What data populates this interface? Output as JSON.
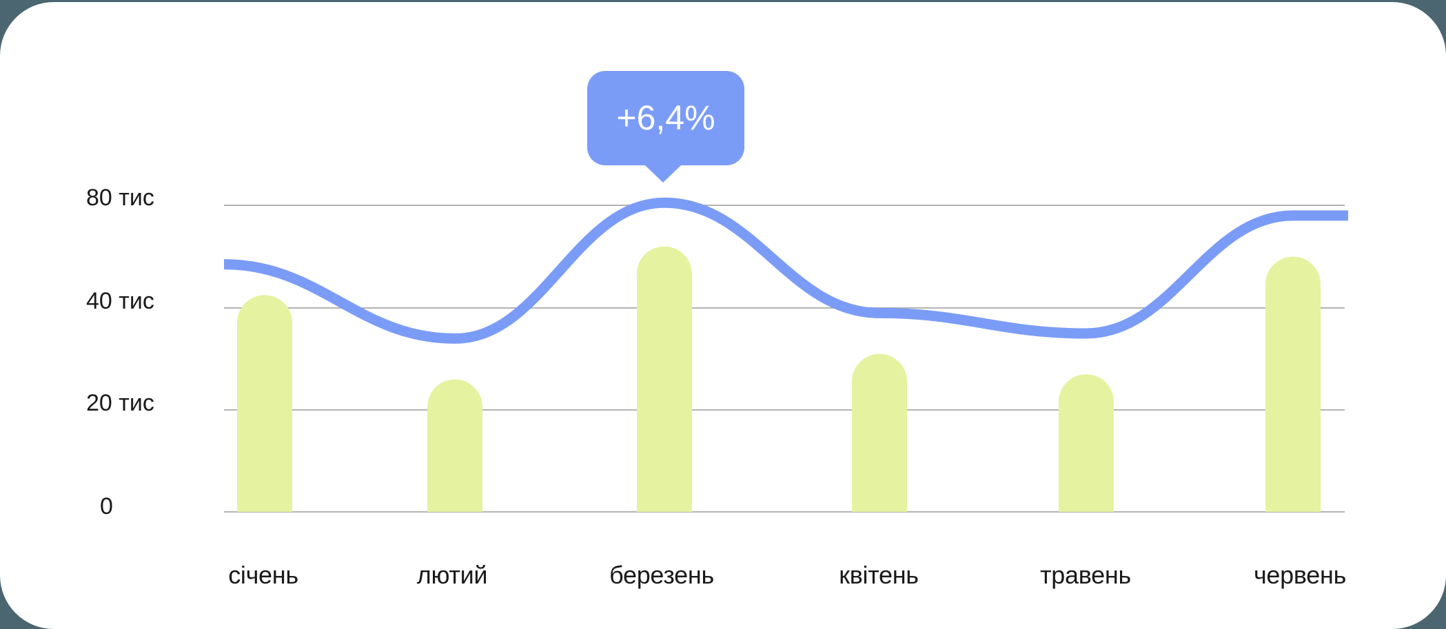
{
  "colors": {
    "background": "#4b6670",
    "card": "#ffffff",
    "bar": "#e5f2a0",
    "line": "#7b9cf6",
    "grid": "#b3b3b3",
    "text": "#1a1a1a",
    "tooltip_bg": "#7b9cf6",
    "tooltip_text": "#ffffff"
  },
  "tooltip": {
    "label": "+6,4%",
    "anchor_category": "березень"
  },
  "y_axis": {
    "ticks": [
      {
        "label": "80 тис",
        "value": 80000
      },
      {
        "label": "40 тис",
        "value": 40000
      },
      {
        "label": "20 тис",
        "value": 20000
      },
      {
        "label": "0",
        "value": 0
      }
    ]
  },
  "x_axis": {
    "labels": [
      "січень",
      "лютий",
      "березень",
      "квітень",
      "травень",
      "червень"
    ]
  },
  "chart_data": {
    "type": "bar",
    "title": "",
    "xlabel": "",
    "ylabel": "",
    "categories": [
      "січень",
      "лютий",
      "березень",
      "квітень",
      "травень",
      "червень"
    ],
    "series": [
      {
        "name": "bars",
        "type": "bar",
        "values": [
          45000,
          26000,
          64000,
          31000,
          27000,
          60000
        ]
      },
      {
        "name": "line",
        "type": "line",
        "values": [
          57000,
          34000,
          81000,
          39000,
          35000,
          76000
        ]
      }
    ],
    "y_ticks": [
      0,
      20000,
      40000,
      80000
    ],
    "y_tick_labels": [
      "0",
      "20 тис",
      "40 тис",
      "80 тис"
    ],
    "ylim": [
      0,
      80000
    ],
    "grid": true,
    "legend": null,
    "annotations": [
      {
        "text": "+6,4%",
        "category": "березень",
        "series": "line"
      }
    ]
  }
}
